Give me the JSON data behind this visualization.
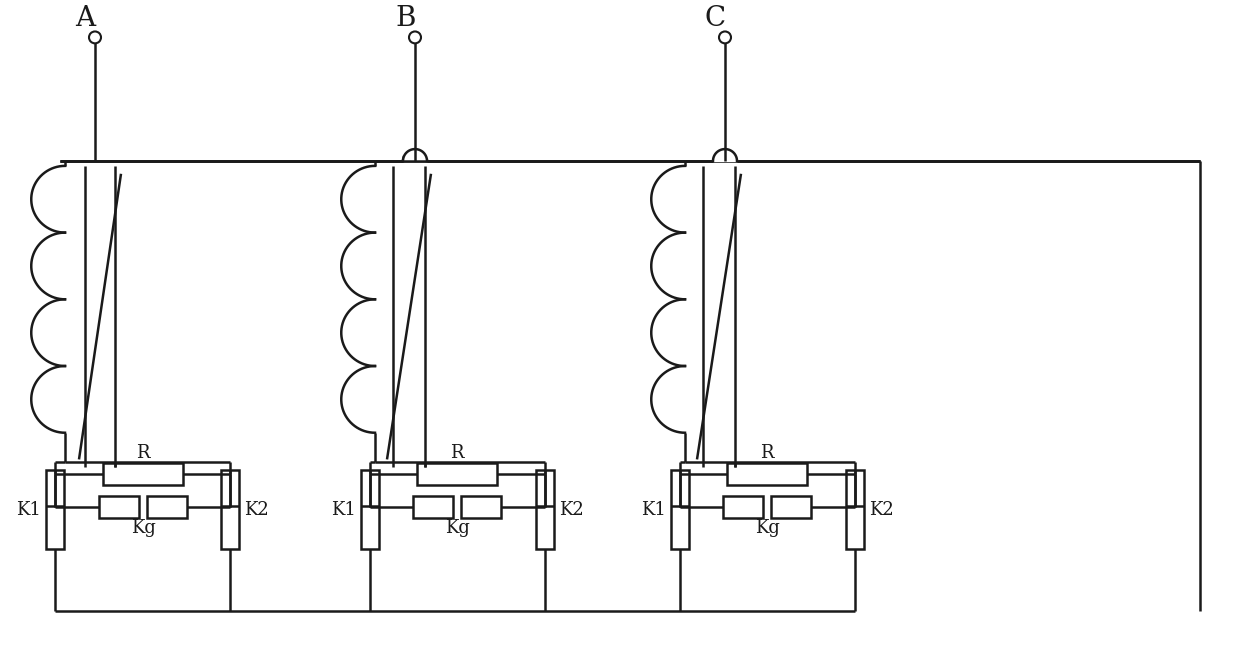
{
  "bg_color": "#ffffff",
  "lc": "#1a1a1a",
  "lw": 1.8,
  "phases": [
    "A",
    "B",
    "C"
  ],
  "label_fs": 20,
  "comp_fs": 13
}
